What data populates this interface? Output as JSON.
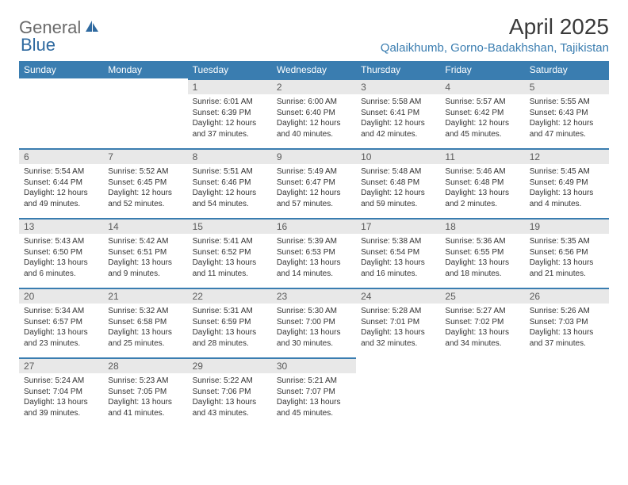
{
  "logo": {
    "general": "General",
    "blue": "Blue"
  },
  "title": "April 2025",
  "location": "Qalaikhumb, Gorno-Badakhshan, Tajikistan",
  "weekdays": [
    "Sunday",
    "Monday",
    "Tuesday",
    "Wednesday",
    "Thursday",
    "Friday",
    "Saturday"
  ],
  "colors": {
    "header_bg": "#3a7db0",
    "header_text": "#ffffff",
    "daynum_bg": "#e8e8e8",
    "daynum_border": "#3a7db0",
    "location_text": "#3a7db0",
    "logo_gray": "#6a6a6a",
    "logo_blue": "#2f6aa0"
  },
  "cells": [
    [
      null,
      null,
      {
        "n": "1",
        "sr": "Sunrise: 6:01 AM",
        "ss": "Sunset: 6:39 PM",
        "d1": "Daylight: 12 hours",
        "d2": "and 37 minutes."
      },
      {
        "n": "2",
        "sr": "Sunrise: 6:00 AM",
        "ss": "Sunset: 6:40 PM",
        "d1": "Daylight: 12 hours",
        "d2": "and 40 minutes."
      },
      {
        "n": "3",
        "sr": "Sunrise: 5:58 AM",
        "ss": "Sunset: 6:41 PM",
        "d1": "Daylight: 12 hours",
        "d2": "and 42 minutes."
      },
      {
        "n": "4",
        "sr": "Sunrise: 5:57 AM",
        "ss": "Sunset: 6:42 PM",
        "d1": "Daylight: 12 hours",
        "d2": "and 45 minutes."
      },
      {
        "n": "5",
        "sr": "Sunrise: 5:55 AM",
        "ss": "Sunset: 6:43 PM",
        "d1": "Daylight: 12 hours",
        "d2": "and 47 minutes."
      }
    ],
    [
      {
        "n": "6",
        "sr": "Sunrise: 5:54 AM",
        "ss": "Sunset: 6:44 PM",
        "d1": "Daylight: 12 hours",
        "d2": "and 49 minutes."
      },
      {
        "n": "7",
        "sr": "Sunrise: 5:52 AM",
        "ss": "Sunset: 6:45 PM",
        "d1": "Daylight: 12 hours",
        "d2": "and 52 minutes."
      },
      {
        "n": "8",
        "sr": "Sunrise: 5:51 AM",
        "ss": "Sunset: 6:46 PM",
        "d1": "Daylight: 12 hours",
        "d2": "and 54 minutes."
      },
      {
        "n": "9",
        "sr": "Sunrise: 5:49 AM",
        "ss": "Sunset: 6:47 PM",
        "d1": "Daylight: 12 hours",
        "d2": "and 57 minutes."
      },
      {
        "n": "10",
        "sr": "Sunrise: 5:48 AM",
        "ss": "Sunset: 6:48 PM",
        "d1": "Daylight: 12 hours",
        "d2": "and 59 minutes."
      },
      {
        "n": "11",
        "sr": "Sunrise: 5:46 AM",
        "ss": "Sunset: 6:48 PM",
        "d1": "Daylight: 13 hours",
        "d2": "and 2 minutes."
      },
      {
        "n": "12",
        "sr": "Sunrise: 5:45 AM",
        "ss": "Sunset: 6:49 PM",
        "d1": "Daylight: 13 hours",
        "d2": "and 4 minutes."
      }
    ],
    [
      {
        "n": "13",
        "sr": "Sunrise: 5:43 AM",
        "ss": "Sunset: 6:50 PM",
        "d1": "Daylight: 13 hours",
        "d2": "and 6 minutes."
      },
      {
        "n": "14",
        "sr": "Sunrise: 5:42 AM",
        "ss": "Sunset: 6:51 PM",
        "d1": "Daylight: 13 hours",
        "d2": "and 9 minutes."
      },
      {
        "n": "15",
        "sr": "Sunrise: 5:41 AM",
        "ss": "Sunset: 6:52 PM",
        "d1": "Daylight: 13 hours",
        "d2": "and 11 minutes."
      },
      {
        "n": "16",
        "sr": "Sunrise: 5:39 AM",
        "ss": "Sunset: 6:53 PM",
        "d1": "Daylight: 13 hours",
        "d2": "and 14 minutes."
      },
      {
        "n": "17",
        "sr": "Sunrise: 5:38 AM",
        "ss": "Sunset: 6:54 PM",
        "d1": "Daylight: 13 hours",
        "d2": "and 16 minutes."
      },
      {
        "n": "18",
        "sr": "Sunrise: 5:36 AM",
        "ss": "Sunset: 6:55 PM",
        "d1": "Daylight: 13 hours",
        "d2": "and 18 minutes."
      },
      {
        "n": "19",
        "sr": "Sunrise: 5:35 AM",
        "ss": "Sunset: 6:56 PM",
        "d1": "Daylight: 13 hours",
        "d2": "and 21 minutes."
      }
    ],
    [
      {
        "n": "20",
        "sr": "Sunrise: 5:34 AM",
        "ss": "Sunset: 6:57 PM",
        "d1": "Daylight: 13 hours",
        "d2": "and 23 minutes."
      },
      {
        "n": "21",
        "sr": "Sunrise: 5:32 AM",
        "ss": "Sunset: 6:58 PM",
        "d1": "Daylight: 13 hours",
        "d2": "and 25 minutes."
      },
      {
        "n": "22",
        "sr": "Sunrise: 5:31 AM",
        "ss": "Sunset: 6:59 PM",
        "d1": "Daylight: 13 hours",
        "d2": "and 28 minutes."
      },
      {
        "n": "23",
        "sr": "Sunrise: 5:30 AM",
        "ss": "Sunset: 7:00 PM",
        "d1": "Daylight: 13 hours",
        "d2": "and 30 minutes."
      },
      {
        "n": "24",
        "sr": "Sunrise: 5:28 AM",
        "ss": "Sunset: 7:01 PM",
        "d1": "Daylight: 13 hours",
        "d2": "and 32 minutes."
      },
      {
        "n": "25",
        "sr": "Sunrise: 5:27 AM",
        "ss": "Sunset: 7:02 PM",
        "d1": "Daylight: 13 hours",
        "d2": "and 34 minutes."
      },
      {
        "n": "26",
        "sr": "Sunrise: 5:26 AM",
        "ss": "Sunset: 7:03 PM",
        "d1": "Daylight: 13 hours",
        "d2": "and 37 minutes."
      }
    ],
    [
      {
        "n": "27",
        "sr": "Sunrise: 5:24 AM",
        "ss": "Sunset: 7:04 PM",
        "d1": "Daylight: 13 hours",
        "d2": "and 39 minutes."
      },
      {
        "n": "28",
        "sr": "Sunrise: 5:23 AM",
        "ss": "Sunset: 7:05 PM",
        "d1": "Daylight: 13 hours",
        "d2": "and 41 minutes."
      },
      {
        "n": "29",
        "sr": "Sunrise: 5:22 AM",
        "ss": "Sunset: 7:06 PM",
        "d1": "Daylight: 13 hours",
        "d2": "and 43 minutes."
      },
      {
        "n": "30",
        "sr": "Sunrise: 5:21 AM",
        "ss": "Sunset: 7:07 PM",
        "d1": "Daylight: 13 hours",
        "d2": "and 45 minutes."
      },
      null,
      null,
      null
    ]
  ]
}
